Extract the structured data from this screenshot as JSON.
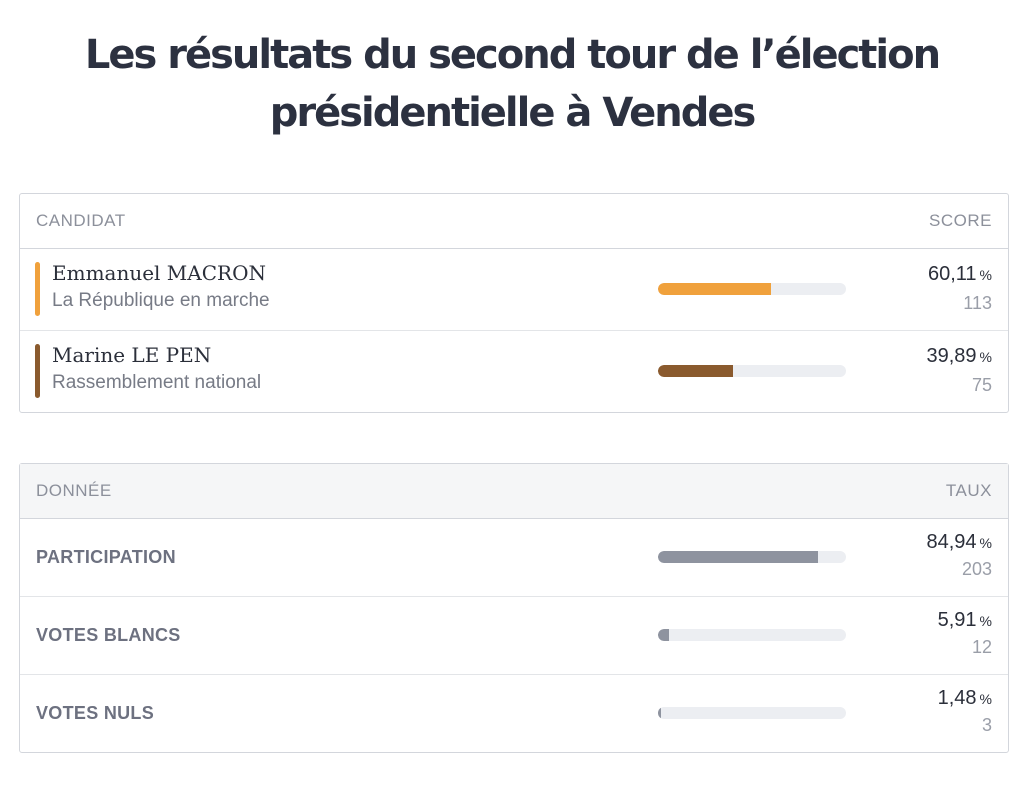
{
  "page": {
    "title": "Les résultats du second tour de l’élection présidentielle à Vendes"
  },
  "colors": {
    "macron": "#f0a13c",
    "lepen": "#8a5a2e",
    "data_bar": "#8e939f",
    "track": "#eceef2"
  },
  "candidates": {
    "header": {
      "left": "CANDIDAT",
      "right": "SCORE"
    },
    "rows": [
      {
        "name": "Emmanuel MACRON",
        "party": "La République en marche",
        "percent": "60,11",
        "unit": "%",
        "votes": "113",
        "share": 0.6011
      },
      {
        "name": "Marine LE PEN",
        "party": "Rassemblement national",
        "percent": "39,89",
        "unit": "%",
        "votes": "75",
        "share": 0.3989
      }
    ]
  },
  "stats": {
    "header": {
      "left": "DONNÉE",
      "right": "TAUX"
    },
    "rows": [
      {
        "label": "PARTICIPATION",
        "percent": "84,94",
        "unit": "%",
        "count": "203",
        "share": 0.8494
      },
      {
        "label": "VOTES BLANCS",
        "percent": "5,91",
        "unit": "%",
        "count": "12",
        "share": 0.0591
      },
      {
        "label": "VOTES NULS",
        "percent": "1,48",
        "unit": "%",
        "count": "3",
        "share": 0.0148
      }
    ]
  }
}
